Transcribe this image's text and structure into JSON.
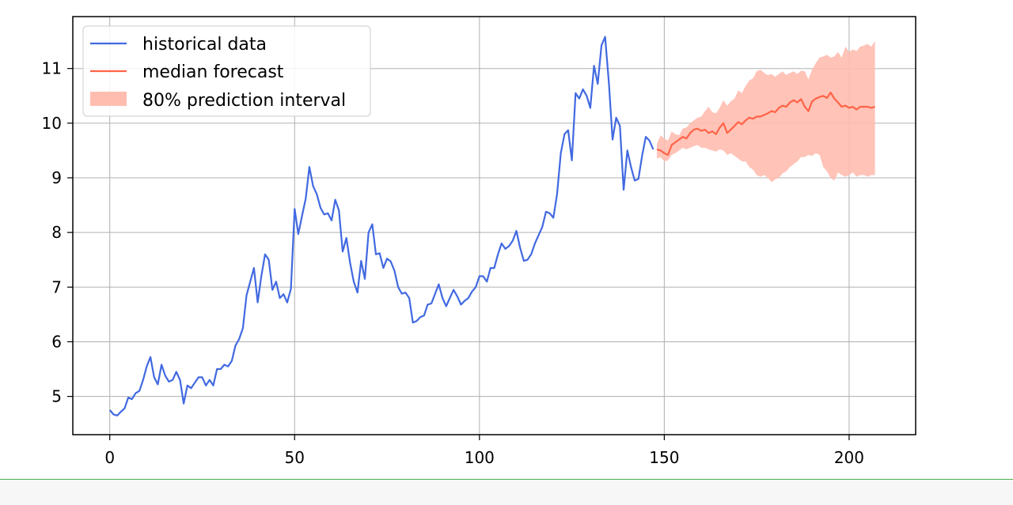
{
  "chart_data": {
    "type": "line",
    "title": "",
    "xlabel": "",
    "ylabel": "",
    "xlim": [
      -10,
      218
    ],
    "ylim": [
      4.3,
      11.95
    ],
    "xticks": [
      0,
      50,
      100,
      150,
      200
    ],
    "yticks": [
      5,
      6,
      7,
      8,
      9,
      10,
      11
    ],
    "grid": true,
    "legend_position": "top-left",
    "series": [
      {
        "name": "historical data",
        "color": "#4169e1",
        "x_start": 0,
        "values": [
          4.75,
          4.67,
          4.65,
          4.72,
          4.78,
          4.98,
          4.95,
          5.06,
          5.1,
          5.3,
          5.55,
          5.72,
          5.35,
          5.22,
          5.58,
          5.38,
          5.27,
          5.3,
          5.45,
          5.3,
          4.87,
          5.2,
          5.15,
          5.25,
          5.35,
          5.35,
          5.2,
          5.3,
          5.2,
          5.5,
          5.5,
          5.58,
          5.55,
          5.65,
          5.93,
          6.05,
          6.25,
          6.85,
          7.1,
          7.35,
          6.72,
          7.2,
          7.6,
          7.5,
          6.95,
          7.1,
          6.8,
          6.87,
          6.72,
          6.97,
          8.43,
          7.97,
          8.3,
          8.62,
          9.2,
          8.85,
          8.7,
          8.45,
          8.33,
          8.35,
          8.22,
          8.6,
          8.4,
          7.65,
          7.9,
          7.45,
          7.1,
          6.9,
          7.48,
          7.15,
          8.0,
          8.15,
          7.6,
          7.62,
          7.35,
          7.52,
          7.47,
          7.3,
          7.0,
          6.88,
          6.9,
          6.8,
          6.35,
          6.38,
          6.45,
          6.48,
          6.68,
          6.7,
          6.88,
          7.05,
          6.8,
          6.65,
          6.8,
          6.95,
          6.83,
          6.68,
          6.75,
          6.8,
          6.92,
          7.0,
          7.2,
          7.2,
          7.1,
          7.35,
          7.35,
          7.6,
          7.8,
          7.7,
          7.75,
          7.85,
          8.03,
          7.72,
          7.48,
          7.5,
          7.6,
          7.8,
          7.95,
          8.1,
          8.38,
          8.35,
          8.27,
          8.7,
          9.45,
          9.8,
          9.87,
          9.32,
          10.55,
          10.45,
          10.62,
          10.5,
          10.28,
          11.05,
          10.72,
          11.42,
          11.58,
          10.75,
          9.7,
          10.1,
          9.95,
          8.78,
          9.5,
          9.2,
          8.95,
          8.98,
          9.4,
          9.75,
          9.68,
          9.52
        ]
      },
      {
        "name": "median forecast",
        "color": "#ff6347",
        "x_start": 148,
        "values": [
          9.52,
          9.5,
          9.45,
          9.42,
          9.6,
          9.65,
          9.7,
          9.75,
          9.72,
          9.82,
          9.88,
          9.9,
          9.86,
          9.88,
          9.82,
          9.85,
          9.8,
          9.92,
          10.0,
          9.82,
          9.88,
          9.95,
          10.02,
          9.98,
          10.05,
          10.1,
          10.08,
          10.12,
          10.12,
          10.15,
          10.18,
          10.22,
          10.2,
          10.28,
          10.32,
          10.3,
          10.38,
          10.42,
          10.38,
          10.44,
          10.3,
          10.22,
          10.4,
          10.45,
          10.48,
          10.5,
          10.46,
          10.56,
          10.45,
          10.38,
          10.3,
          10.32,
          10.28,
          10.3,
          10.25,
          10.3,
          10.3,
          10.3,
          10.28,
          10.3
        ]
      }
    ],
    "interval": {
      "name": "80% prediction interval",
      "color": "#ffbdb0",
      "x_start": 148,
      "lower": [
        9.35,
        9.38,
        9.3,
        9.32,
        9.42,
        9.45,
        9.5,
        9.55,
        9.52,
        9.55,
        9.58,
        9.6,
        9.55,
        9.55,
        9.52,
        9.5,
        9.48,
        9.52,
        9.5,
        9.42,
        9.45,
        9.4,
        9.35,
        9.3,
        9.3,
        9.2,
        9.15,
        9.05,
        9.02,
        9.05,
        9.0,
        8.92,
        8.97,
        9.0,
        9.08,
        9.12,
        9.2,
        9.25,
        9.3,
        9.38,
        9.38,
        9.42,
        9.4,
        9.45,
        9.42,
        9.2,
        9.12,
        9.0,
        8.95,
        9.1,
        9.05,
        9.02,
        9.05,
        9.1,
        9.02,
        9.05,
        9.05,
        9.02,
        9.05,
        9.05
      ],
      "upper": [
        9.62,
        9.78,
        9.72,
        9.68,
        9.85,
        9.8,
        9.78,
        9.9,
        9.92,
        10.0,
        10.05,
        10.1,
        10.12,
        10.22,
        10.3,
        10.2,
        10.18,
        10.28,
        10.42,
        10.32,
        10.4,
        10.45,
        10.6,
        10.55,
        10.68,
        10.78,
        10.82,
        10.95,
        10.98,
        10.92,
        10.88,
        10.9,
        10.85,
        10.9,
        10.95,
        10.88,
        10.92,
        10.95,
        10.9,
        10.96,
        10.95,
        10.8,
        10.98,
        11.1,
        11.2,
        11.22,
        11.25,
        11.2,
        11.22,
        11.3,
        11.2,
        11.4,
        11.3,
        11.35,
        11.32,
        11.4,
        11.42,
        11.45,
        11.4,
        11.5
      ]
    }
  }
}
